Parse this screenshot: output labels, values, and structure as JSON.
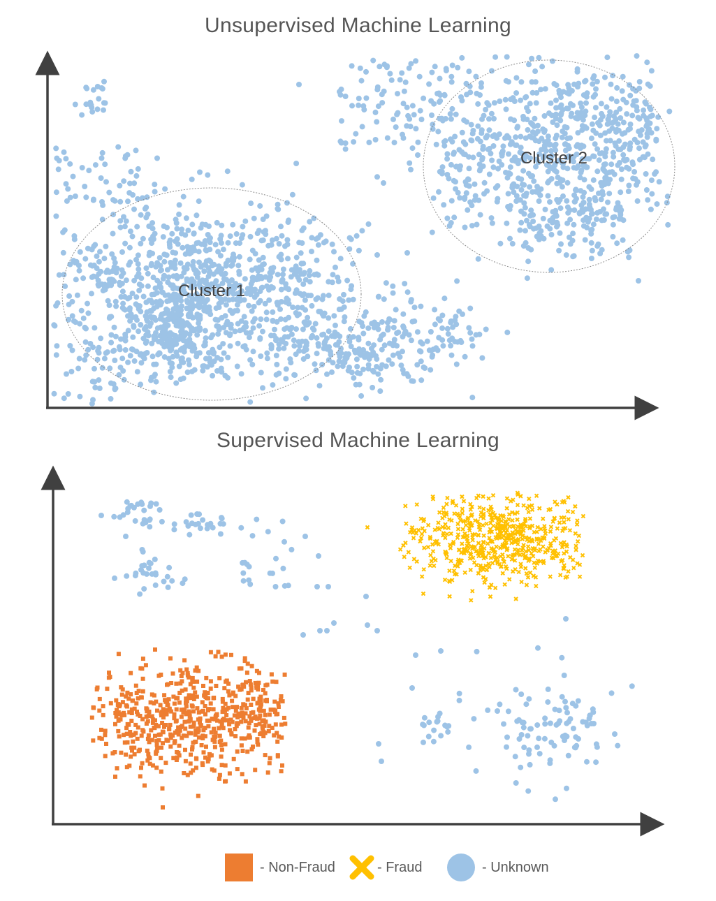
{
  "colors": {
    "unknown": "#9dc3e6",
    "non_fraud": "#ed7d31",
    "fraud": "#ffc000",
    "axis": "#404040",
    "title": "#555555",
    "ellipse": "#8c8c8c"
  },
  "top_panel": {
    "title": "Unsupervised Machine Learning",
    "clusters": [
      {
        "label": "Cluster 1"
      },
      {
        "label": "Cluster 2"
      }
    ]
  },
  "bottom_panel": {
    "title": "Supervised Machine Learning"
  },
  "legend": [
    {
      "label": "- Non-Fraud",
      "marker": "square",
      "color_key": "non_fraud"
    },
    {
      "label": "- Fraud",
      "marker": "cross",
      "color_key": "fraud"
    },
    {
      "label": "- Unknown",
      "marker": "circle",
      "color_key": "unknown"
    }
  ]
}
